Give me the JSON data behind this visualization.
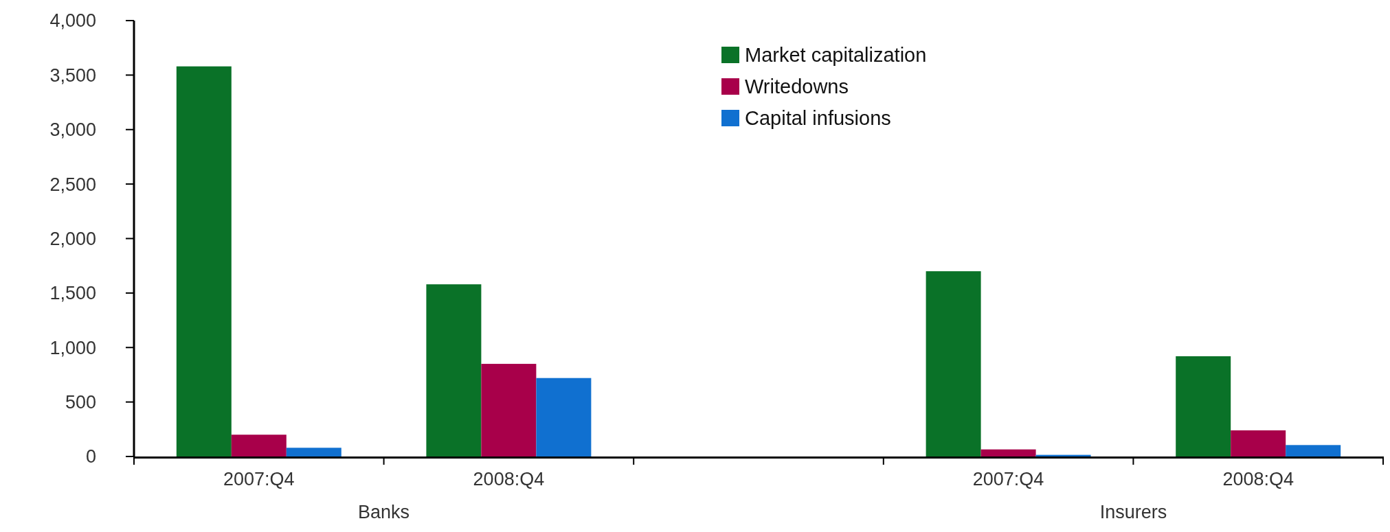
{
  "chart_data": {
    "type": "bar",
    "categories": [
      "2007:Q4",
      "2008:Q4",
      null,
      "2007:Q4",
      "2008:Q4"
    ],
    "series": [
      {
        "name": "Market capitalization",
        "color": "#0a7228",
        "values": [
          3580,
          1580,
          null,
          1700,
          920
        ]
      },
      {
        "name": "Writedowns",
        "color": "#a8004a",
        "values": [
          200,
          850,
          null,
          65,
          240
        ]
      },
      {
        "name": "Capital infusions",
        "color": "#1070d0",
        "values": [
          80,
          720,
          null,
          15,
          105
        ]
      }
    ],
    "ylim": [
      0,
      4000
    ],
    "yticks": [
      {
        "value": 0,
        "label": "0"
      },
      {
        "value": 500,
        "label": "500"
      },
      {
        "value": 1000,
        "label": "1,000"
      },
      {
        "value": 1500,
        "label": "1,500"
      },
      {
        "value": 2000,
        "label": "2,000"
      },
      {
        "value": 2500,
        "label": "2,500"
      },
      {
        "value": 3000,
        "label": "3,000"
      },
      {
        "value": 3500,
        "label": "3,500"
      },
      {
        "value": 4000,
        "label": "4,000"
      }
    ],
    "annotations": [
      "Banks",
      "Insurers"
    ],
    "legend": "top right",
    "grid": false
  }
}
